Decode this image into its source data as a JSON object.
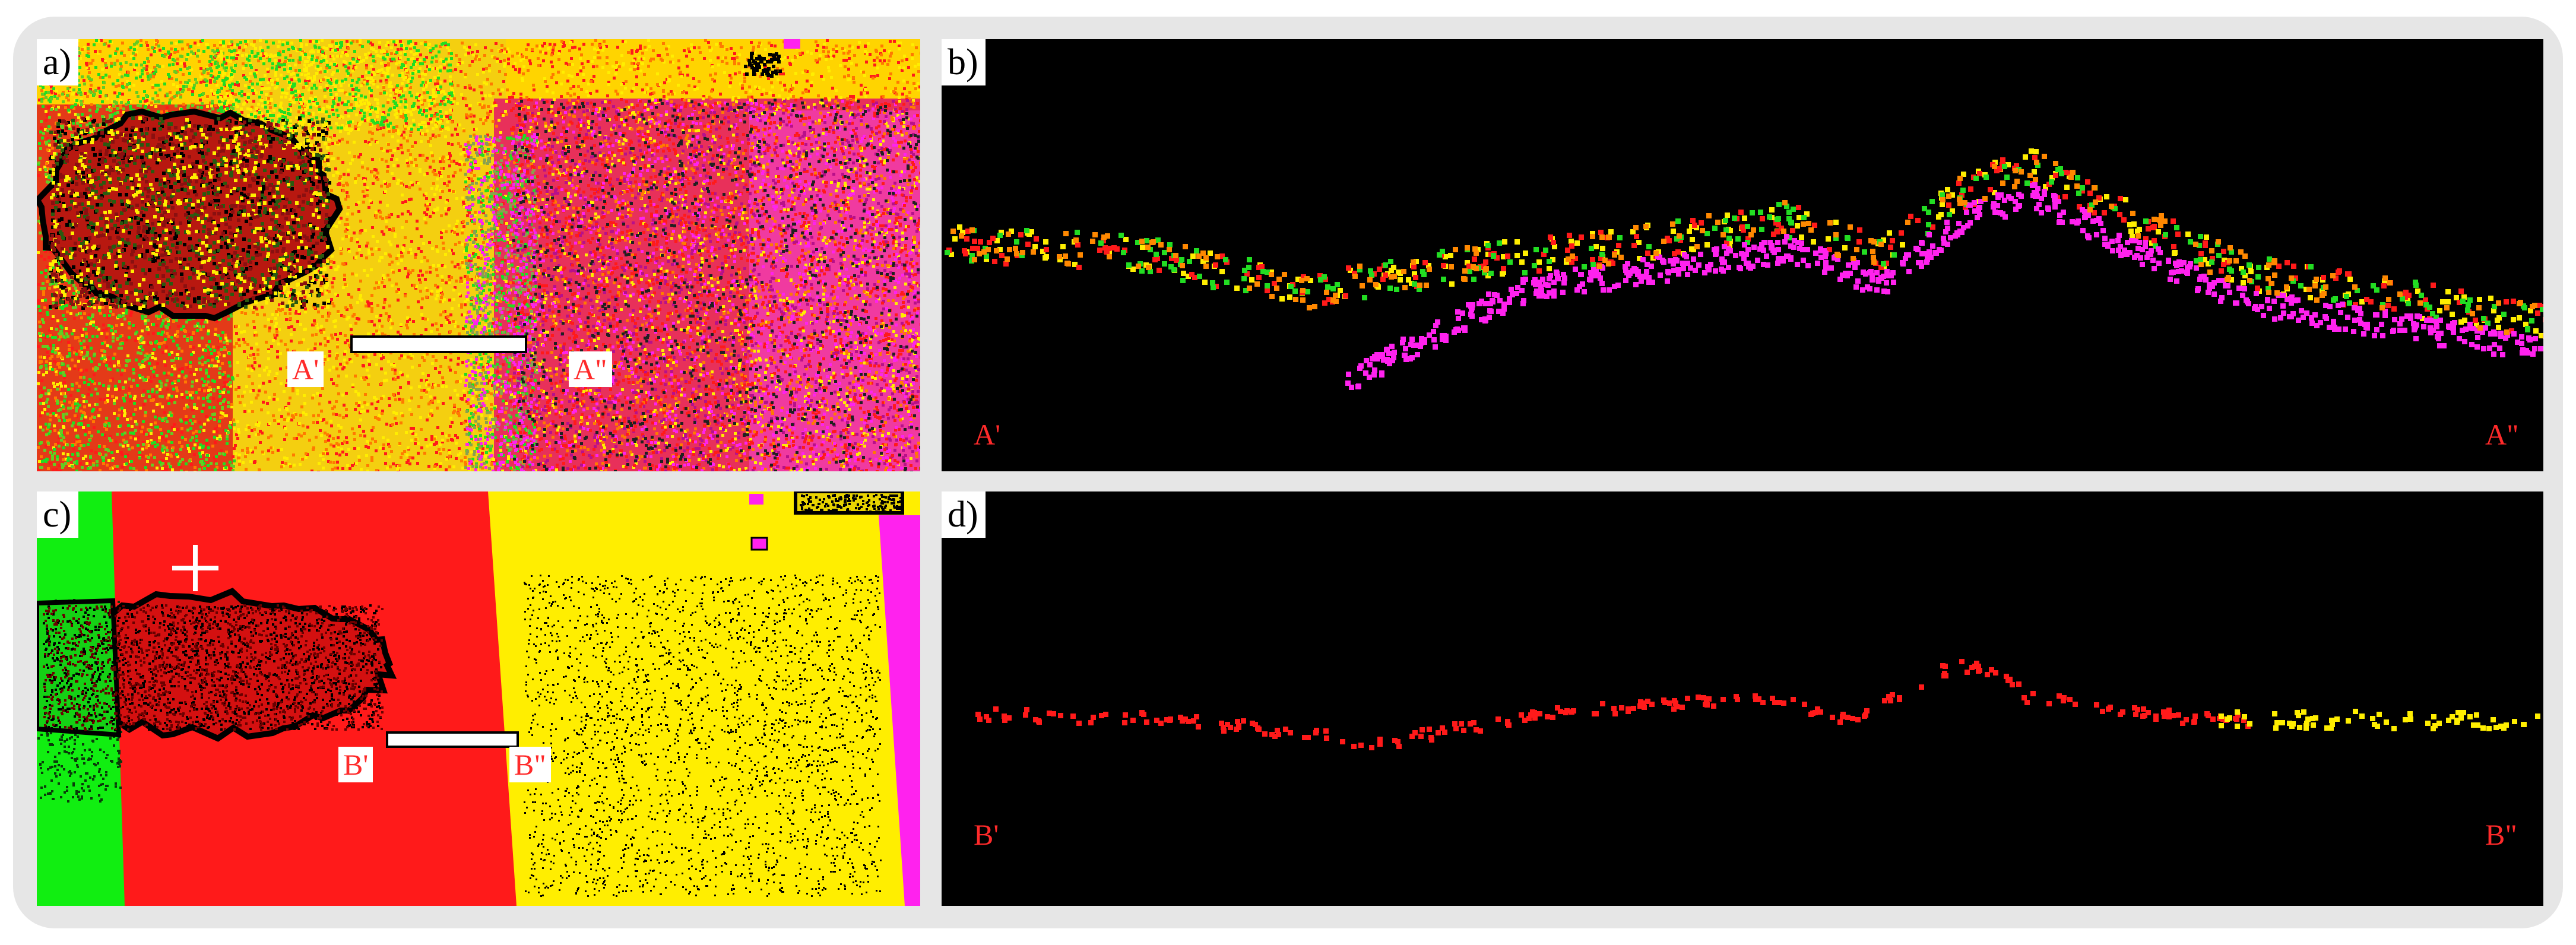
{
  "panels": {
    "a": {
      "label": "a)",
      "section_start": "A'",
      "section_end": "A\""
    },
    "b": {
      "label": "b)",
      "profile_start": "A'",
      "profile_end": "A\""
    },
    "c": {
      "label": "c)",
      "section_start": "B'",
      "section_end": "B\""
    },
    "d": {
      "label": "d)",
      "profile_start": "B'",
      "profile_end": "B\""
    }
  },
  "colors": {
    "red": "#ff1a1a",
    "yellow": "#ffee00",
    "green": "#22dd22",
    "magenta": "#ff22ee",
    "black": "#000000",
    "label_red": "#ff2a2a"
  },
  "icons": {
    "crosshair": "plus-crosshair-icon"
  }
}
